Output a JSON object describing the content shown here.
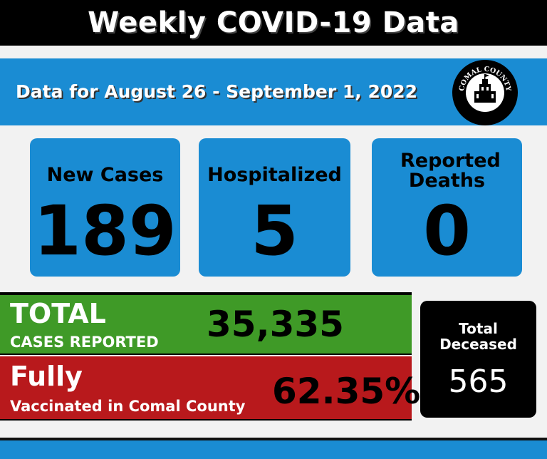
{
  "header": {
    "title": "Weekly COVID-19 Data"
  },
  "date_range": "Data for August 26  - September 1, 2022",
  "seal": {
    "icon": "county-seal-icon",
    "text_top": "COMAL COUNTY",
    "text_bottom": "TEXAS"
  },
  "stats": [
    {
      "label": "New Cases",
      "value": "189"
    },
    {
      "label": "Hospitalized",
      "value": "5"
    },
    {
      "label": "Reported Deaths",
      "value": "0"
    }
  ],
  "total_cases": {
    "heading": "TOTAL",
    "subheading": "CASES REPORTED",
    "value": "35,335"
  },
  "vaccinated": {
    "heading": "Fully",
    "subheading": "Vaccinated in Comal County",
    "value": "62.35%"
  },
  "deceased": {
    "label": "Total Deceased",
    "value": "565"
  },
  "colors": {
    "blue": "#1a8cd3",
    "green": "#3f9a27",
    "red": "#b8191c",
    "black": "#000000"
  }
}
